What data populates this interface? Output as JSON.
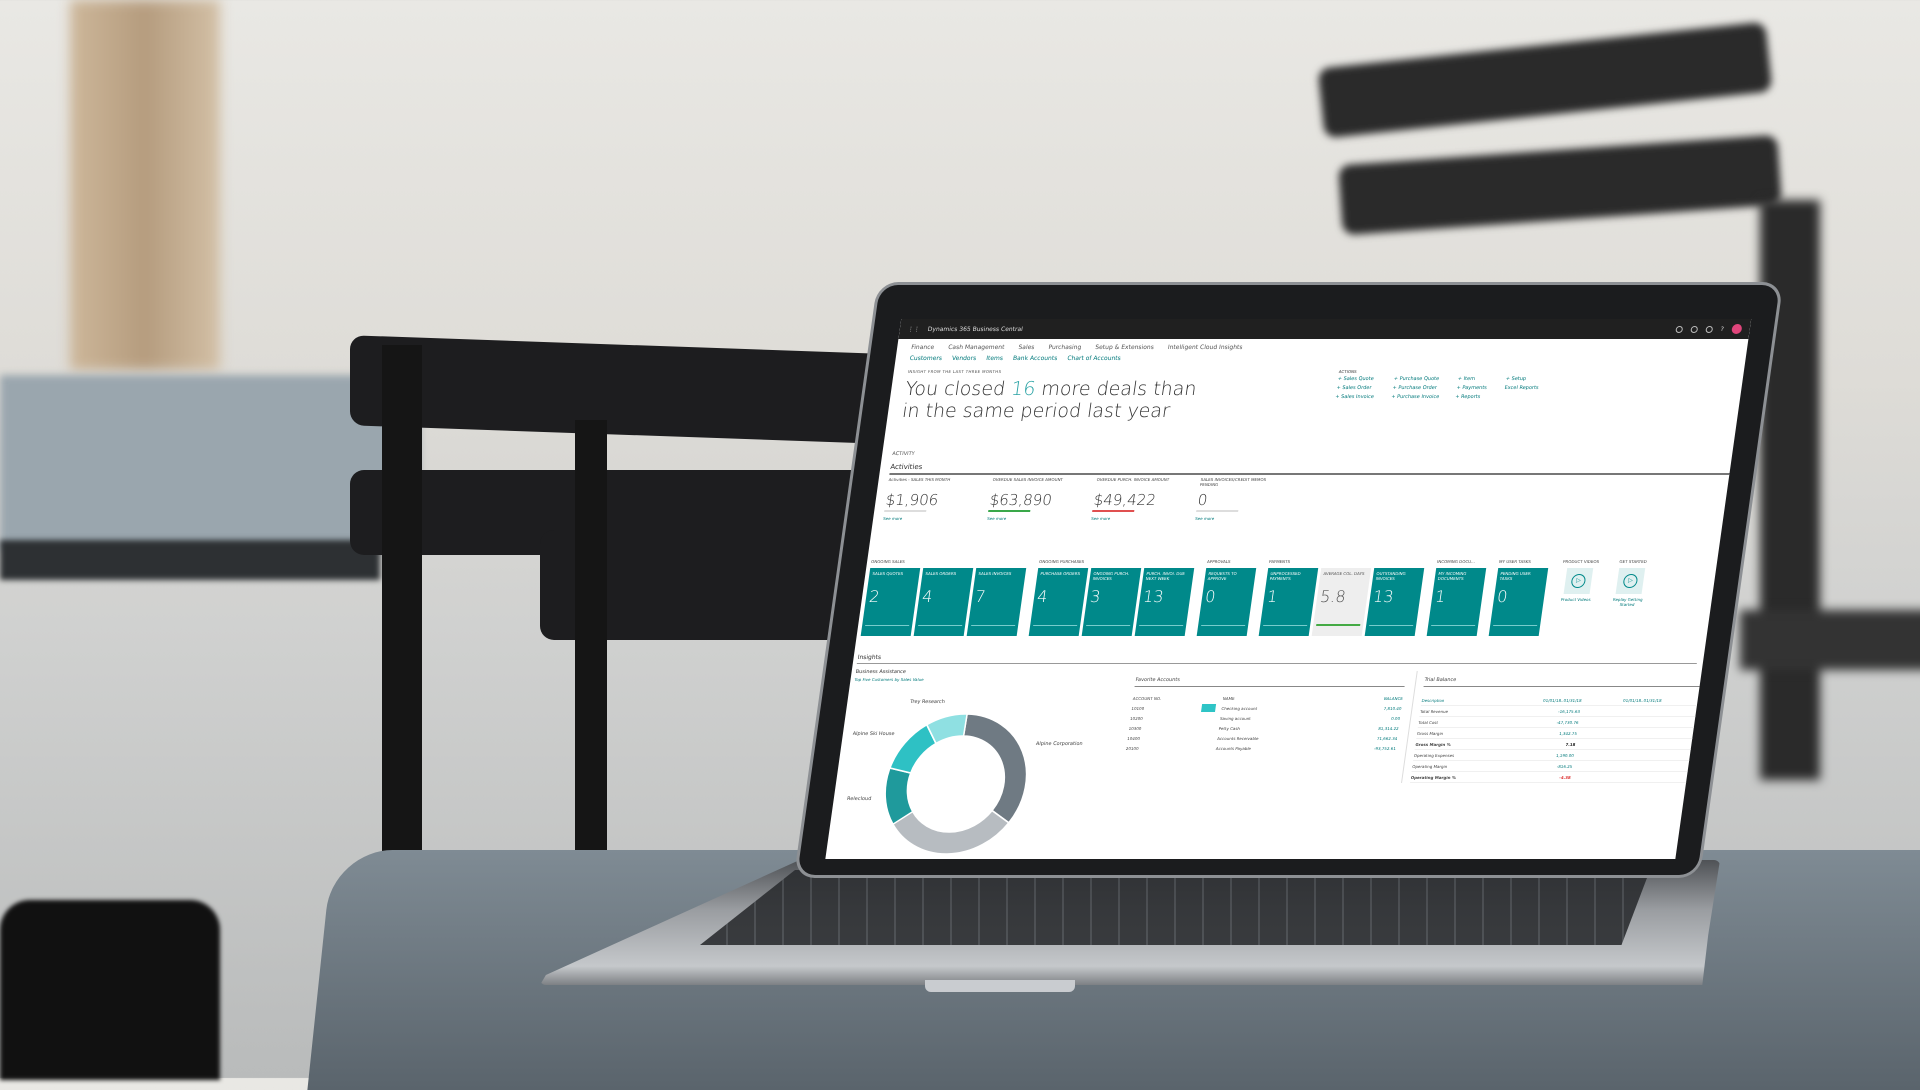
{
  "app": {
    "title": "Dynamics 365 Business Central"
  },
  "nav": {
    "menu": [
      "Finance",
      "Cash Management",
      "Sales",
      "Purchasing",
      "Setup & Extensions",
      "Intelligent Cloud Insights"
    ],
    "links": [
      "Customers",
      "Vendors",
      "Items",
      "Bank Accounts",
      "Chart of Accounts"
    ]
  },
  "headline": {
    "label": "INSIGHT FROM THE LAST THREE MONTHS",
    "pre": "You closed ",
    "num": "16",
    "post": " more deals than in the same period last year"
  },
  "actions": {
    "heading": "ACTIONS",
    "items": [
      "+ Sales Quote",
      "+ Purchase Quote",
      "+ Item",
      "+ Setup",
      "+ Sales Order",
      "+ Purchase Order",
      "+ Payments",
      "Excel Reports",
      "+ Sales Invoice",
      "+ Purchase Invoice",
      "+ Reports",
      ""
    ]
  },
  "activities": {
    "section": "ACTIVITY",
    "heading": "Activities",
    "kpis": [
      {
        "label": "Activities - SALES THIS MONTH",
        "value": "$1,906",
        "link": "See more",
        "bar": ""
      },
      {
        "label": "OVERDUE SALES INVOICE AMOUNT",
        "value": "$63,890",
        "link": "See more",
        "bar": "#3aa84a"
      },
      {
        "label": "OVERDUE PURCH. INVOICE AMOUNT",
        "value": "$49,422",
        "link": "See more",
        "bar": "#e05050"
      },
      {
        "label": "SALES INVOICES/CREDIT MEMOS PENDING",
        "value": "0",
        "link": "See more",
        "bar": ""
      }
    ]
  },
  "tile_groups": [
    {
      "title": "ONGOING SALES",
      "tiles": [
        {
          "label": "SALES QUOTES",
          "value": "2"
        },
        {
          "label": "SALES ORDERS",
          "value": "4"
        },
        {
          "label": "SALES INVOICES",
          "value": "7"
        }
      ]
    },
    {
      "title": "ONGOING PURCHASES",
      "tiles": [
        {
          "label": "PURCHASE ORDERS",
          "value": "4"
        },
        {
          "label": "ONGOING PURCH. INVOICES",
          "value": "3"
        },
        {
          "label": "PURCH. INVOI. DUE NEXT WEEK",
          "value": "13"
        }
      ]
    },
    {
      "title": "APPROVALS",
      "tiles": [
        {
          "label": "REQUESTS TO APPROVE",
          "value": "0"
        }
      ]
    },
    {
      "title": "PAYMENTS",
      "tiles": [
        {
          "label": "UNPROCESSED PAYMENTS",
          "value": "1"
        },
        {
          "label": "AVERAGE COL. DAYS",
          "value": "5.8",
          "light": true
        },
        {
          "label": "OUTSTANDING INVOICES",
          "value": "13"
        }
      ]
    },
    {
      "title": "INCOMING DOCU...",
      "tiles": [
        {
          "label": "MY INCOMING DOCUMENTS",
          "value": "1"
        }
      ]
    },
    {
      "title": "MY USER TASKS",
      "tiles": [
        {
          "label": "PENDING USER TASKS",
          "value": "0"
        }
      ]
    }
  ],
  "videos": [
    {
      "title": "PRODUCT VIDEOS",
      "caption": "Product Videos"
    },
    {
      "title": "GET STARTED",
      "caption": "Replay Getting Started"
    }
  ],
  "insights": {
    "heading": "Insights",
    "part": "Business Assistance",
    "subtitle": "Top Five Customers by Sales Value",
    "chart": {
      "type": "pie",
      "labels": [
        "Alpine Corporation",
        "",
        "Relecloud",
        "Alpine Ski House",
        "Trey Research"
      ],
      "values": [
        33,
        30,
        13,
        12,
        9
      ],
      "colors": [
        "#6f7a83",
        "#b7bcc1",
        "#1f9a9c",
        "#2ec1c4",
        "#8fe0e2"
      ]
    }
  },
  "favorites": {
    "title": "Favorite Accounts",
    "cols": [
      "ACCOUNT NO.",
      "NAME",
      "BALANCE"
    ],
    "rows": [
      {
        "no": "10100",
        "name": "Checking account",
        "bal": "7,810.40"
      },
      {
        "no": "10200",
        "name": "Saving account",
        "bal": "0.00"
      },
      {
        "no": "10300",
        "name": "Petty Cash",
        "bal": "81,314.22"
      },
      {
        "no": "10400",
        "name": "Accounts Receivable",
        "bal": "71,662.34"
      },
      {
        "no": "20100",
        "name": "Accounts Payable",
        "bal": "-93,752.61"
      }
    ]
  },
  "trial": {
    "title": "Trial Balance",
    "cols": [
      "Description",
      "01/01/18..01/31/18",
      "01/01/18..01/31/18"
    ],
    "rows": [
      {
        "d": "Total Revenue",
        "v": "-16,175.63",
        "b": false
      },
      {
        "d": "Total Cost",
        "v": "-47,730.76",
        "b": false
      },
      {
        "d": "Gross Margin",
        "v": "1,342.75",
        "b": false
      },
      {
        "d": "Gross Margin %",
        "v": "7.18",
        "b": true
      },
      {
        "d": "Operating Expenses",
        "v": "1,190.00",
        "b": false
      },
      {
        "d": "Operating Margin",
        "v": "-816.25",
        "b": false
      },
      {
        "d": "Operating Margin %",
        "v": "-4.38",
        "b": true,
        "neg": true
      }
    ]
  }
}
